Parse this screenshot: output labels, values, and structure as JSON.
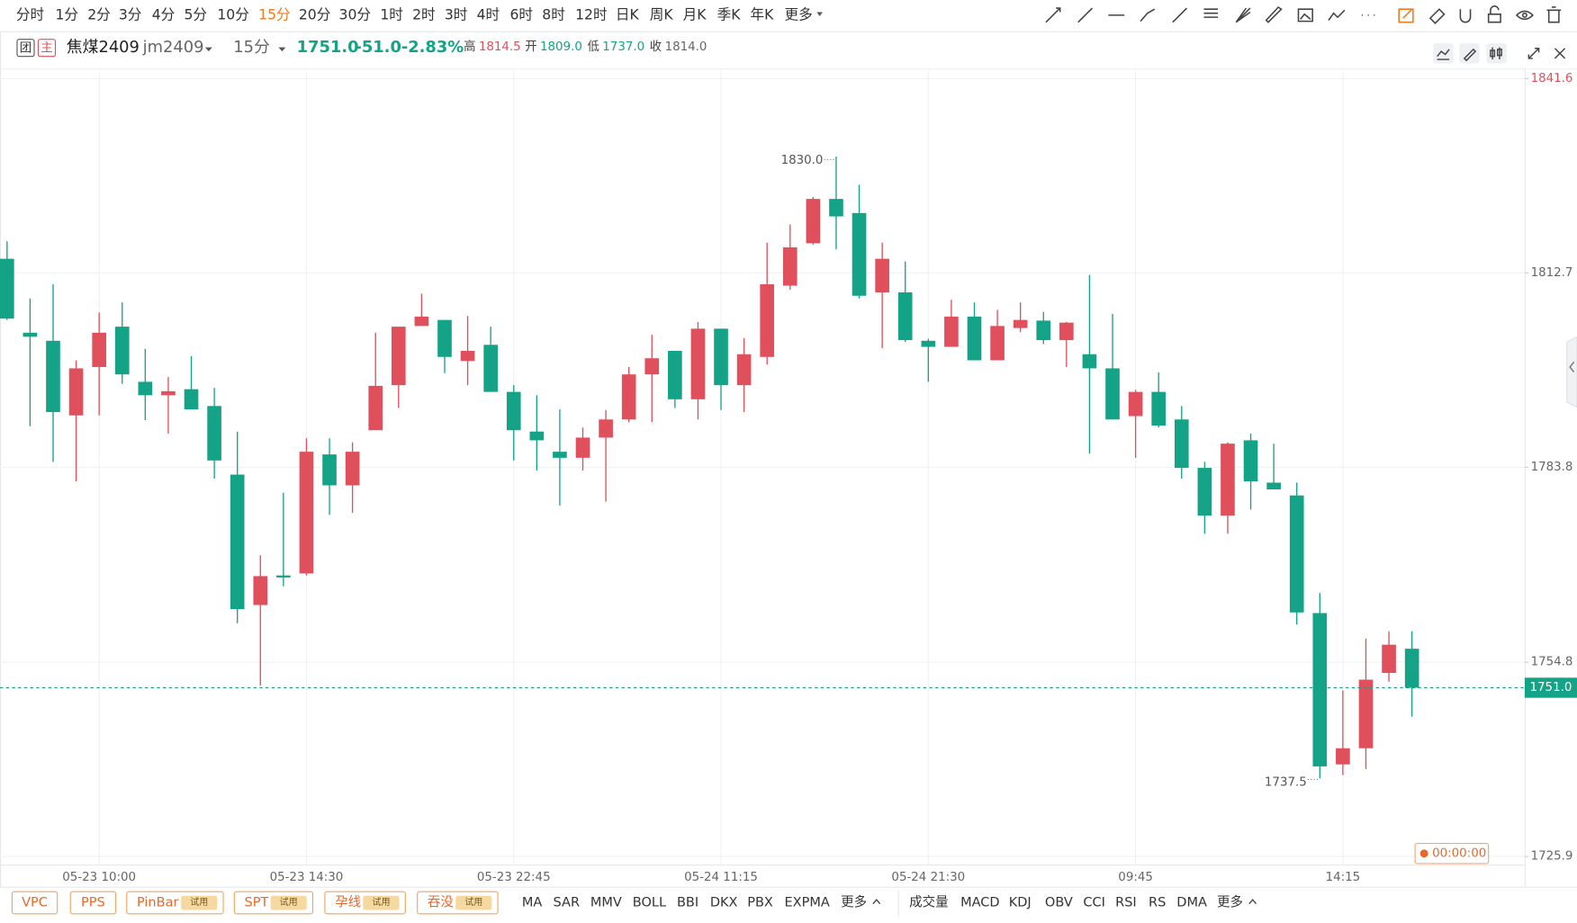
{
  "toolbar": {
    "timeframes": [
      "分时",
      "1分",
      "2分",
      "3分",
      "4分",
      "5分",
      "10分",
      "15分",
      "20分",
      "30分",
      "1时",
      "2时",
      "3时",
      "4时",
      "6时",
      "8时",
      "12时",
      "日K",
      "周K",
      "月K",
      "季K",
      "年K",
      "更多"
    ],
    "selected": "15分"
  },
  "header": {
    "badges": [
      "团",
      "主"
    ],
    "symbol": "焦煤2409",
    "code": "jm2409",
    "period": "15分",
    "price": "1751.0",
    "change": "-51.0",
    "change_pct": "-2.83%",
    "stats": [
      {
        "label": "高",
        "value": "1814.5"
      },
      {
        "label": "开",
        "value": "1809.0"
      },
      {
        "label": "低",
        "value": "1737.0"
      },
      {
        "label": "收",
        "value": "1814.0"
      }
    ]
  },
  "chart_data": {
    "type": "candlestick",
    "up_color": "#e0505c",
    "down_color": "#14a386",
    "categories": [
      null,
      null,
      null,
      null,
      "05-23 10:00",
      null,
      null,
      null,
      null,
      null,
      null,
      null,
      null,
      "05-23 14:30",
      null,
      null,
      null,
      null,
      null,
      null,
      null,
      null,
      "05-23 22:45",
      null,
      null,
      null,
      null,
      null,
      null,
      null,
      null,
      "05-24 11:15",
      null,
      null,
      null,
      null,
      null,
      null,
      null,
      null,
      "05-24 21:30",
      null,
      null,
      null,
      null,
      null,
      null,
      null,
      null,
      "09:45",
      null,
      null,
      null,
      null,
      null,
      null,
      null,
      null,
      "14:15",
      null,
      null,
      null
    ],
    "ohlc": [
      [
        1814.8,
        1817.4,
        1805.7,
        1805.9
      ],
      [
        1803.8,
        1808.9,
        1789.9,
        1803.2
      ],
      [
        1802.6,
        1811.0,
        1784.6,
        1792.0
      ],
      [
        1791.5,
        1799.7,
        1781.7,
        1798.5
      ],
      [
        1798.7,
        1806.8,
        1791.5,
        1803.8
      ],
      [
        1804.7,
        1808.3,
        1796.2,
        1797.6
      ],
      [
        1796.5,
        1801.4,
        1790.8,
        1794.5
      ],
      [
        1794.5,
        1797.2,
        1788.8,
        1795.1
      ],
      [
        1795.4,
        1800.3,
        1792.4,
        1792.4
      ],
      [
        1792.9,
        1795.6,
        1782.1,
        1784.8
      ],
      [
        1782.7,
        1789.1,
        1760.6,
        1762.7
      ],
      [
        1763.3,
        1770.7,
        1751.3,
        1767.6
      ],
      [
        1767.7,
        1780.0,
        1766.1,
        1767.4
      ],
      [
        1768.0,
        1788.1,
        1767.7,
        1786.1
      ],
      [
        1785.7,
        1788.1,
        1776.7,
        1781.1
      ],
      [
        1781.1,
        1787.5,
        1777.0,
        1786.1
      ],
      [
        1789.3,
        1803.8,
        1789.3,
        1795.9
      ],
      [
        1796.0,
        1804.7,
        1792.6,
        1804.7
      ],
      [
        1804.8,
        1809.6,
        1804.8,
        1806.2
      ],
      [
        1805.7,
        1805.7,
        1797.8,
        1800.2
      ],
      [
        1799.6,
        1806.3,
        1796.0,
        1801.1
      ],
      [
        1802.0,
        1804.7,
        1795.0,
        1795.0
      ],
      [
        1795.0,
        1796.0,
        1784.8,
        1789.3
      ],
      [
        1789.1,
        1794.5,
        1783.3,
        1787.8
      ],
      [
        1786.1,
        1792.4,
        1778.1,
        1785.2
      ],
      [
        1785.2,
        1789.7,
        1783.3,
        1788.2
      ],
      [
        1788.2,
        1792.3,
        1778.7,
        1790.9
      ],
      [
        1790.9,
        1798.7,
        1790.5,
        1797.6
      ],
      [
        1797.6,
        1803.5,
        1790.5,
        1800.0
      ],
      [
        1801.1,
        1801.1,
        1792.6,
        1793.9
      ],
      [
        1793.9,
        1805.4,
        1790.9,
        1804.4
      ],
      [
        1804.4,
        1804.4,
        1792.3,
        1796.0
      ],
      [
        1796.0,
        1803.0,
        1792.0,
        1800.6
      ],
      [
        1800.2,
        1817.2,
        1799.1,
        1811.0
      ],
      [
        1810.8,
        1819.9,
        1810.2,
        1816.5
      ],
      [
        1817.1,
        1824.0,
        1816.9,
        1823.7
      ],
      [
        1823.7,
        1830.0,
        1816.2,
        1821.1
      ],
      [
        1821.6,
        1825.8,
        1808.9,
        1809.3
      ],
      [
        1809.8,
        1817.2,
        1801.5,
        1814.8
      ],
      [
        1809.8,
        1814.4,
        1802.4,
        1802.7
      ],
      [
        1802.6,
        1802.9,
        1796.5,
        1801.7
      ],
      [
        1801.7,
        1808.7,
        1801.7,
        1806.2
      ],
      [
        1806.2,
        1808.3,
        1799.7,
        1799.7
      ],
      [
        1799.7,
        1807.2,
        1799.7,
        1804.8
      ],
      [
        1804.5,
        1808.3,
        1803.9,
        1805.7
      ],
      [
        1805.6,
        1806.9,
        1802.1,
        1802.7
      ],
      [
        1802.7,
        1805.4,
        1798.7,
        1805.3
      ],
      [
        1800.6,
        1812.4,
        1785.8,
        1798.5
      ],
      [
        1798.5,
        1806.6,
        1790.9,
        1790.9
      ],
      [
        1791.4,
        1795.3,
        1785.2,
        1795.0
      ],
      [
        1795.0,
        1797.9,
        1789.7,
        1790.0
      ],
      [
        1790.9,
        1792.9,
        1782.1,
        1783.7
      ],
      [
        1783.7,
        1784.6,
        1773.9,
        1776.6
      ],
      [
        1776.6,
        1787.5,
        1773.9,
        1787.3
      ],
      [
        1787.8,
        1788.8,
        1777.5,
        1781.7
      ],
      [
        1781.5,
        1787.3,
        1780.5,
        1780.5
      ],
      [
        1779.6,
        1781.5,
        1760.4,
        1762.2
      ],
      [
        1762.1,
        1765.1,
        1737.5,
        1739.3
      ],
      [
        1739.6,
        1750.6,
        1738.0,
        1742.0
      ],
      [
        1742.0,
        1758.3,
        1738.9,
        1752.2
      ],
      [
        1753.2,
        1759.4,
        1751.9,
        1757.4
      ],
      [
        1756.8,
        1759.4,
        1746.7,
        1751.0
      ]
    ],
    "high_label": "1830.0",
    "low_label": "1737.5",
    "last_price": {
      "value": 1751.0,
      "label": "1751.0"
    },
    "ylim": [
      1724.7,
      1842.8
    ],
    "yticks": [
      1841.6,
      1812.7,
      1783.8,
      1754.8,
      1725.9
    ],
    "grid": true,
    "timer": "00:00:00"
  },
  "footer": {
    "patterns": [
      {
        "label": "VPC"
      },
      {
        "label": "PPS"
      },
      {
        "label": "PinBar",
        "tag": "试用"
      },
      {
        "label": "SPT",
        "tag": "试用"
      },
      {
        "label": "孕线",
        "tag": "试用"
      },
      {
        "label": "吞没",
        "tag": "试用"
      }
    ],
    "main_indicators": [
      "MA",
      "SAR",
      "MMV",
      "BOLL",
      "BBI",
      "DKX",
      "PBX",
      "EXPMA",
      "更多"
    ],
    "sub_indicators": [
      "成交量",
      "MACD",
      "KDJ",
      "OBV",
      "CCI",
      "RSI",
      "RS",
      "DMA",
      "更多"
    ]
  }
}
